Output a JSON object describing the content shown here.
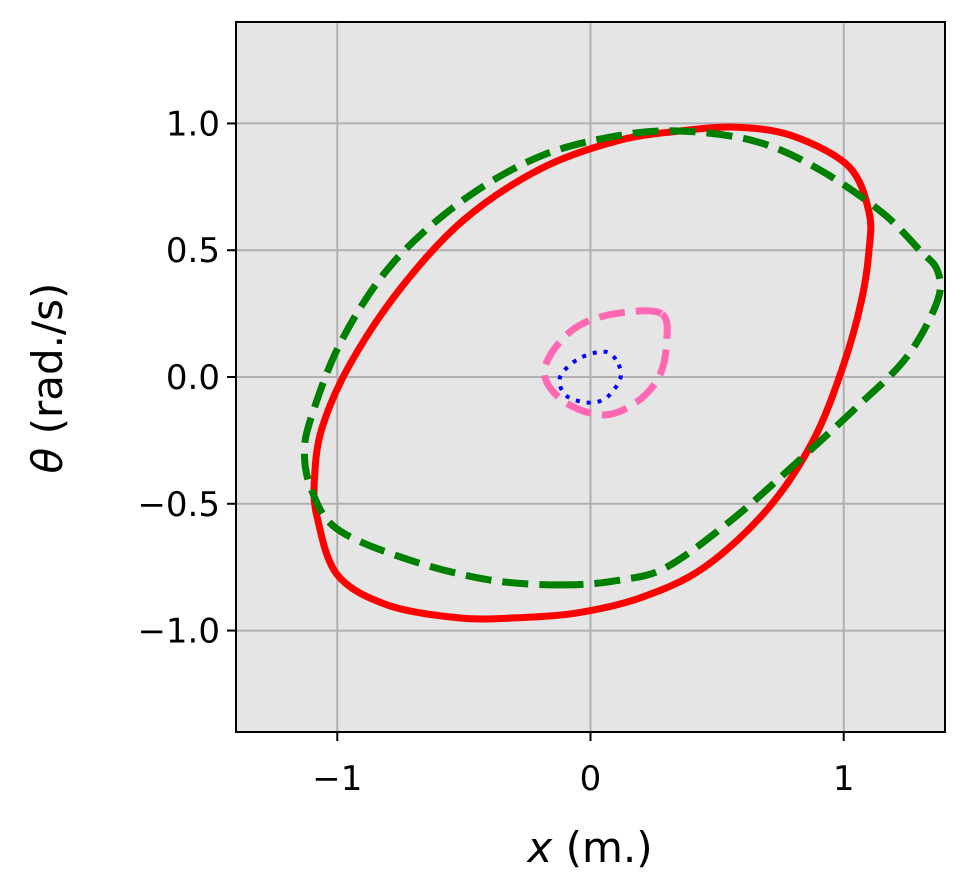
{
  "chart_data": {
    "type": "line",
    "xlabel": {
      "symbol": "x",
      "unit": "(m.)"
    },
    "ylabel": {
      "symbol": "θ",
      "unit": "(rad./s)"
    },
    "xlim": [
      -1.4,
      1.4
    ],
    "ylim": [
      -1.4,
      1.4
    ],
    "grid": true,
    "background": "#e5e5e5",
    "gridColor": "#b0b0b0",
    "xticks": [
      {
        "value": -1,
        "label": "−1"
      },
      {
        "value": 0,
        "label": "0"
      },
      {
        "value": 1,
        "label": "1"
      }
    ],
    "yticks": [
      {
        "value": -1.0,
        "label": "−1.0"
      },
      {
        "value": -0.5,
        "label": "−0.5"
      },
      {
        "value": 0.0,
        "label": "0.0"
      },
      {
        "value": 0.5,
        "label": "0.5"
      },
      {
        "value": 1.0,
        "label": "1.0"
      }
    ],
    "series": [
      {
        "color": "#ff0000",
        "style": "solid",
        "points": [
          [
            -0.52,
            -0.95
          ],
          [
            -0.8,
            -0.9
          ],
          [
            -1.0,
            -0.78
          ],
          [
            -1.08,
            -0.55
          ],
          [
            -1.09,
            -0.4
          ],
          [
            -1.06,
            -0.2
          ],
          [
            -0.95,
            0.05
          ],
          [
            -0.75,
            0.35
          ],
          [
            -0.5,
            0.62
          ],
          [
            -0.2,
            0.82
          ],
          [
            0.1,
            0.93
          ],
          [
            0.35,
            0.97
          ],
          [
            0.58,
            0.985
          ],
          [
            0.8,
            0.95
          ],
          [
            1.02,
            0.83
          ],
          [
            1.1,
            0.65
          ],
          [
            1.1,
            0.5
          ],
          [
            1.07,
            0.3
          ],
          [
            1.0,
            0.05
          ],
          [
            0.88,
            -0.25
          ],
          [
            0.7,
            -0.52
          ],
          [
            0.45,
            -0.75
          ],
          [
            0.2,
            -0.87
          ],
          [
            -0.05,
            -0.93
          ],
          [
            -0.3,
            -0.95
          ],
          [
            -0.52,
            -0.95
          ]
        ]
      },
      {
        "color": "#008000",
        "style": "dashed",
        "points": [
          [
            -0.1,
            -0.82
          ],
          [
            -0.4,
            -0.8
          ],
          [
            -0.72,
            -0.72
          ],
          [
            -1.0,
            -0.6
          ],
          [
            -1.1,
            -0.45
          ],
          [
            -1.13,
            -0.3
          ],
          [
            -1.1,
            -0.15
          ],
          [
            -0.98,
            0.15
          ],
          [
            -0.78,
            0.45
          ],
          [
            -0.5,
            0.7
          ],
          [
            -0.2,
            0.87
          ],
          [
            0.1,
            0.95
          ],
          [
            0.35,
            0.97
          ],
          [
            0.65,
            0.93
          ],
          [
            0.9,
            0.82
          ],
          [
            1.15,
            0.65
          ],
          [
            1.3,
            0.5
          ],
          [
            1.37,
            0.42
          ],
          [
            1.37,
            0.3
          ],
          [
            1.25,
            0.08
          ],
          [
            1.05,
            -0.12
          ],
          [
            0.8,
            -0.35
          ],
          [
            0.55,
            -0.57
          ],
          [
            0.3,
            -0.75
          ],
          [
            0.12,
            -0.8
          ],
          [
            -0.1,
            -0.82
          ]
        ]
      },
      {
        "color": "#ff69b4",
        "style": "dashed",
        "points": [
          [
            0.28,
            0.25
          ],
          [
            0.1,
            0.25
          ],
          [
            -0.05,
            0.2
          ],
          [
            -0.15,
            0.1
          ],
          [
            -0.18,
            0.0
          ],
          [
            -0.1,
            -0.1
          ],
          [
            0.05,
            -0.15
          ],
          [
            0.18,
            -0.1
          ],
          [
            0.27,
            0.0
          ],
          [
            0.3,
            0.13
          ],
          [
            0.28,
            0.25
          ]
        ]
      },
      {
        "color": "#0000ff",
        "style": "dotted",
        "points": [
          [
            0.1,
            0.07
          ],
          [
            0.05,
            0.1
          ],
          [
            -0.05,
            0.07
          ],
          [
            -0.12,
            0.0
          ],
          [
            -0.1,
            -0.07
          ],
          [
            -0.02,
            -0.1
          ],
          [
            0.05,
            -0.09
          ],
          [
            0.1,
            -0.04
          ],
          [
            0.12,
            0.01
          ],
          [
            0.1,
            0.07
          ]
        ]
      }
    ]
  }
}
